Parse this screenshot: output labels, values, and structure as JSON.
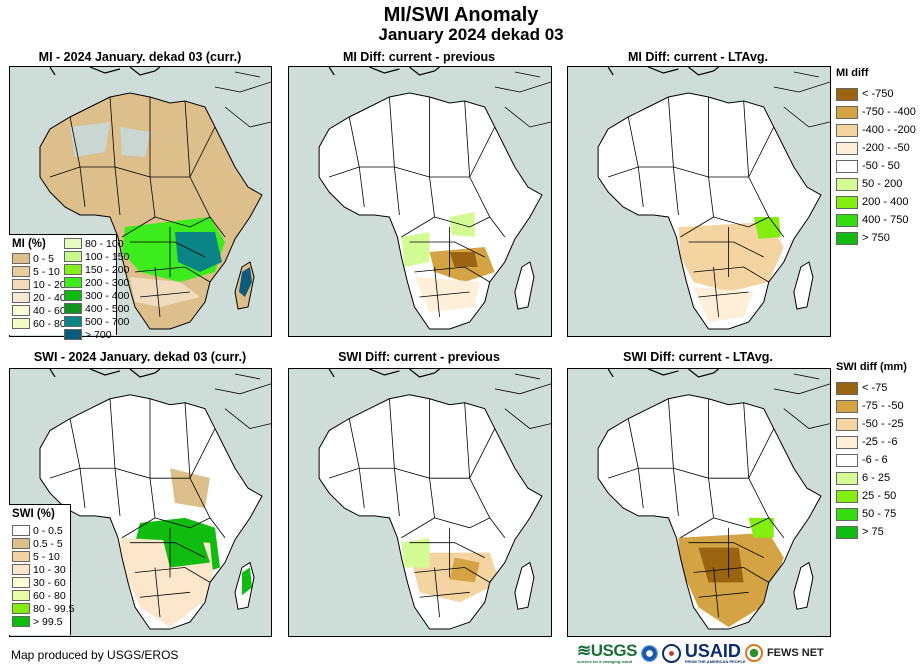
{
  "header": {
    "title": "MI/SWI Anomaly",
    "subtitle": "January 2024 dekad 03"
  },
  "panels": [
    {
      "title": "MI - 2024 January. dekad 03 (curr.)",
      "variable": "MI",
      "kind": "current"
    },
    {
      "title": "MI Diff: current - previous",
      "variable": "MI",
      "kind": "diff-previous"
    },
    {
      "title": "MI Diff: current - LTAvg.",
      "variable": "MI",
      "kind": "diff-ltavg"
    },
    {
      "title": "SWI - 2024 January. dekad 03 (curr.)",
      "variable": "SWI",
      "kind": "current"
    },
    {
      "title": "SWI Diff: current - previous",
      "variable": "SWI",
      "kind": "diff-previous"
    },
    {
      "title": "SWI Diff: current - LTAvg.",
      "variable": "SWI",
      "kind": "diff-ltavg"
    }
  ],
  "legends": {
    "mi_current": {
      "title": "MI (%)",
      "items": [
        {
          "label": "0 - 5",
          "color": "#dcbf8a"
        },
        {
          "label": "5 - 10",
          "color": "#e6cc9e"
        },
        {
          "label": "10 - 20",
          "color": "#f0dcbc"
        },
        {
          "label": "20 - 40",
          "color": "#f6e8d4"
        },
        {
          "label": "40 - 60",
          "color": "#fcfcd8"
        },
        {
          "label": "60 - 80",
          "color": "#f2fcc4"
        },
        {
          "label": "80 - 100",
          "color": "#e4fcc0"
        },
        {
          "label": "100 - 150",
          "color": "#c8f890"
        },
        {
          "label": "150 - 200",
          "color": "#84ee1a"
        },
        {
          "label": "200 - 300",
          "color": "#3cec1c"
        },
        {
          "label": "300 - 400",
          "color": "#0cbc0c"
        },
        {
          "label": "400 - 500",
          "color": "#10961e"
        },
        {
          "label": "500 - 700",
          "color": "#0a8484"
        },
        {
          "label": "> 700",
          "color": "#0c5a7c"
        }
      ]
    },
    "swi_current": {
      "title": "SWI (%)",
      "items": [
        {
          "label": "0 - 0.5",
          "color": "#ffffff"
        },
        {
          "label": "0.5 - 5",
          "color": "#dcbf8a"
        },
        {
          "label": "5 - 10",
          "color": "#f0d4a4"
        },
        {
          "label": "10 - 30",
          "color": "#fce6cc"
        },
        {
          "label": "30 - 60",
          "color": "#fcfcd8"
        },
        {
          "label": "60 - 80",
          "color": "#e8fca8"
        },
        {
          "label": "80 - 99.5",
          "color": "#84ec10"
        },
        {
          "label": "> 99.5",
          "color": "#10bc10"
        }
      ]
    },
    "mi_diff": {
      "title": "MI diff",
      "items": [
        {
          "label": "< -750",
          "color": "#9a6410"
        },
        {
          "label": "-750 - -400",
          "color": "#d4a444"
        },
        {
          "label": "-400 - -200",
          "color": "#f4d4a0"
        },
        {
          "label": "-200 - -50",
          "color": "#fef0d8"
        },
        {
          "label": "-50 - 50",
          "color": "#ffffff"
        },
        {
          "label": "50 - 200",
          "color": "#d4fc94"
        },
        {
          "label": "200 - 400",
          "color": "#84ee10"
        },
        {
          "label": "400 - 750",
          "color": "#34dc10"
        },
        {
          "label": "> 750",
          "color": "#10bc10"
        }
      ]
    },
    "swi_diff": {
      "title": "SWI diff (mm)",
      "items": [
        {
          "label": "< -75",
          "color": "#9a6410"
        },
        {
          "label": "-75 - -50",
          "color": "#d4a444"
        },
        {
          "label": "-50 - -25",
          "color": "#f4d4a0"
        },
        {
          "label": "-25 - -6",
          "color": "#fef0d8"
        },
        {
          "label": "-6 - 6",
          "color": "#ffffff"
        },
        {
          "label": "6 - 25",
          "color": "#d4fc94"
        },
        {
          "label": "25 - 50",
          "color": "#84ee10"
        },
        {
          "label": "50 - 75",
          "color": "#34dc10"
        },
        {
          "label": "> 75",
          "color": "#10bc10"
        }
      ]
    }
  },
  "footer": {
    "credit": "Map produced by USGS/EROS",
    "logos": [
      "USGS",
      "NOAA",
      "USAID",
      "FEWS NET"
    ],
    "usgs_tagline": "science for a changing world",
    "usaid_tagline": "FROM THE AMERICAN PEOPLE"
  },
  "colors": {
    "ocean": "#cfddd8",
    "border": "#000000"
  }
}
